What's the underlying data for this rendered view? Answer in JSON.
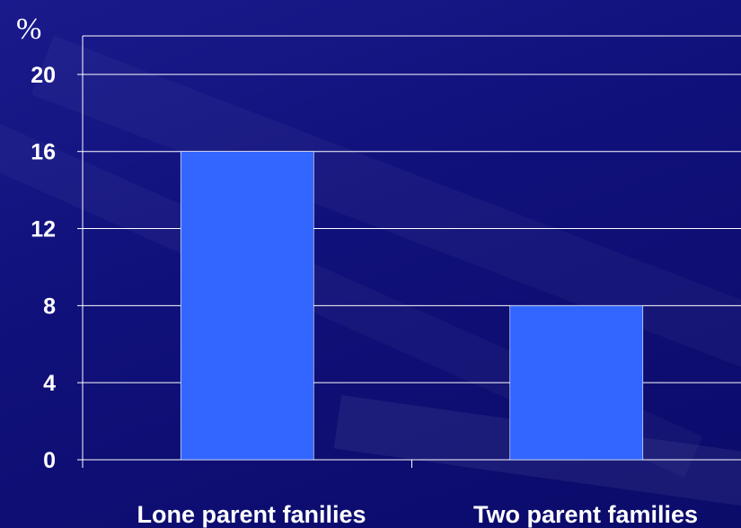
{
  "chart_data": {
    "type": "bar",
    "title": "",
    "xlabel": "",
    "ylabel": "%",
    "categories": [
      "Lone parent fanilies",
      "Two parent families"
    ],
    "values": [
      16,
      8
    ],
    "ylim": [
      0,
      22
    ],
    "yticks": [
      "0",
      "4",
      "8",
      "12",
      "16",
      "20"
    ],
    "grid": true,
    "legend": "none",
    "colors": {
      "bar": "#3366ff",
      "gridline": "#ffffff",
      "background": "#10107a"
    }
  }
}
